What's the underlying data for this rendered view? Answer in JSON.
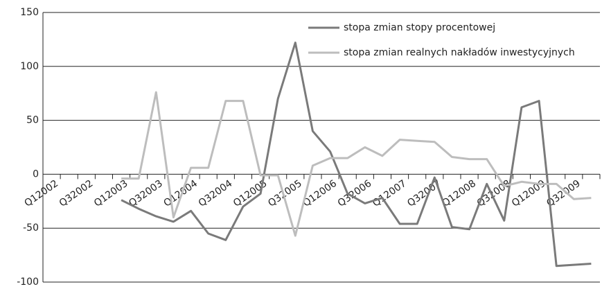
{
  "chart_data": {
    "type": "line",
    "categories": [
      "Q12002",
      null,
      "Q32002",
      null,
      "Q12003",
      null,
      "Q32003",
      null,
      "Q12004",
      null,
      "Q32004",
      null,
      "Q12005",
      null,
      "Q32005",
      null,
      "Q12006",
      null,
      "Q32006",
      null,
      "Q12007",
      null,
      "Q32007",
      null,
      "Q12008",
      null,
      "Q32008",
      null,
      "Q12009",
      null,
      "Q32009",
      null
    ],
    "series": [
      {
        "name": "stopa zmian stopy procentowej",
        "color": "#7a7a7a",
        "values": [
          null,
          null,
          null,
          null,
          -24,
          -32,
          -39,
          -44,
          -34,
          -55,
          -61,
          -30,
          -18,
          70,
          122,
          40,
          21,
          -18,
          -27,
          -22,
          -46,
          -46,
          -3,
          -49,
          -51,
          -9,
          -43,
          62,
          68,
          -85,
          -84,
          -83
        ]
      },
      {
        "name": "stopa zmian realnych nakładów inwestycyjnych",
        "color": "#bdbdbd",
        "values": [
          null,
          null,
          null,
          null,
          -4,
          -4,
          76,
          -40,
          6,
          6,
          68,
          68,
          -1,
          -1,
          -57,
          8,
          15,
          15,
          25,
          17,
          32,
          31,
          30,
          16,
          14,
          14,
          -11,
          -7,
          -9,
          -9,
          -23,
          -22
        ]
      }
    ],
    "ylim": [
      -100,
      150
    ],
    "yticks": [
      -100,
      -50,
      0,
      50,
      100,
      150
    ],
    "grid": true
  }
}
